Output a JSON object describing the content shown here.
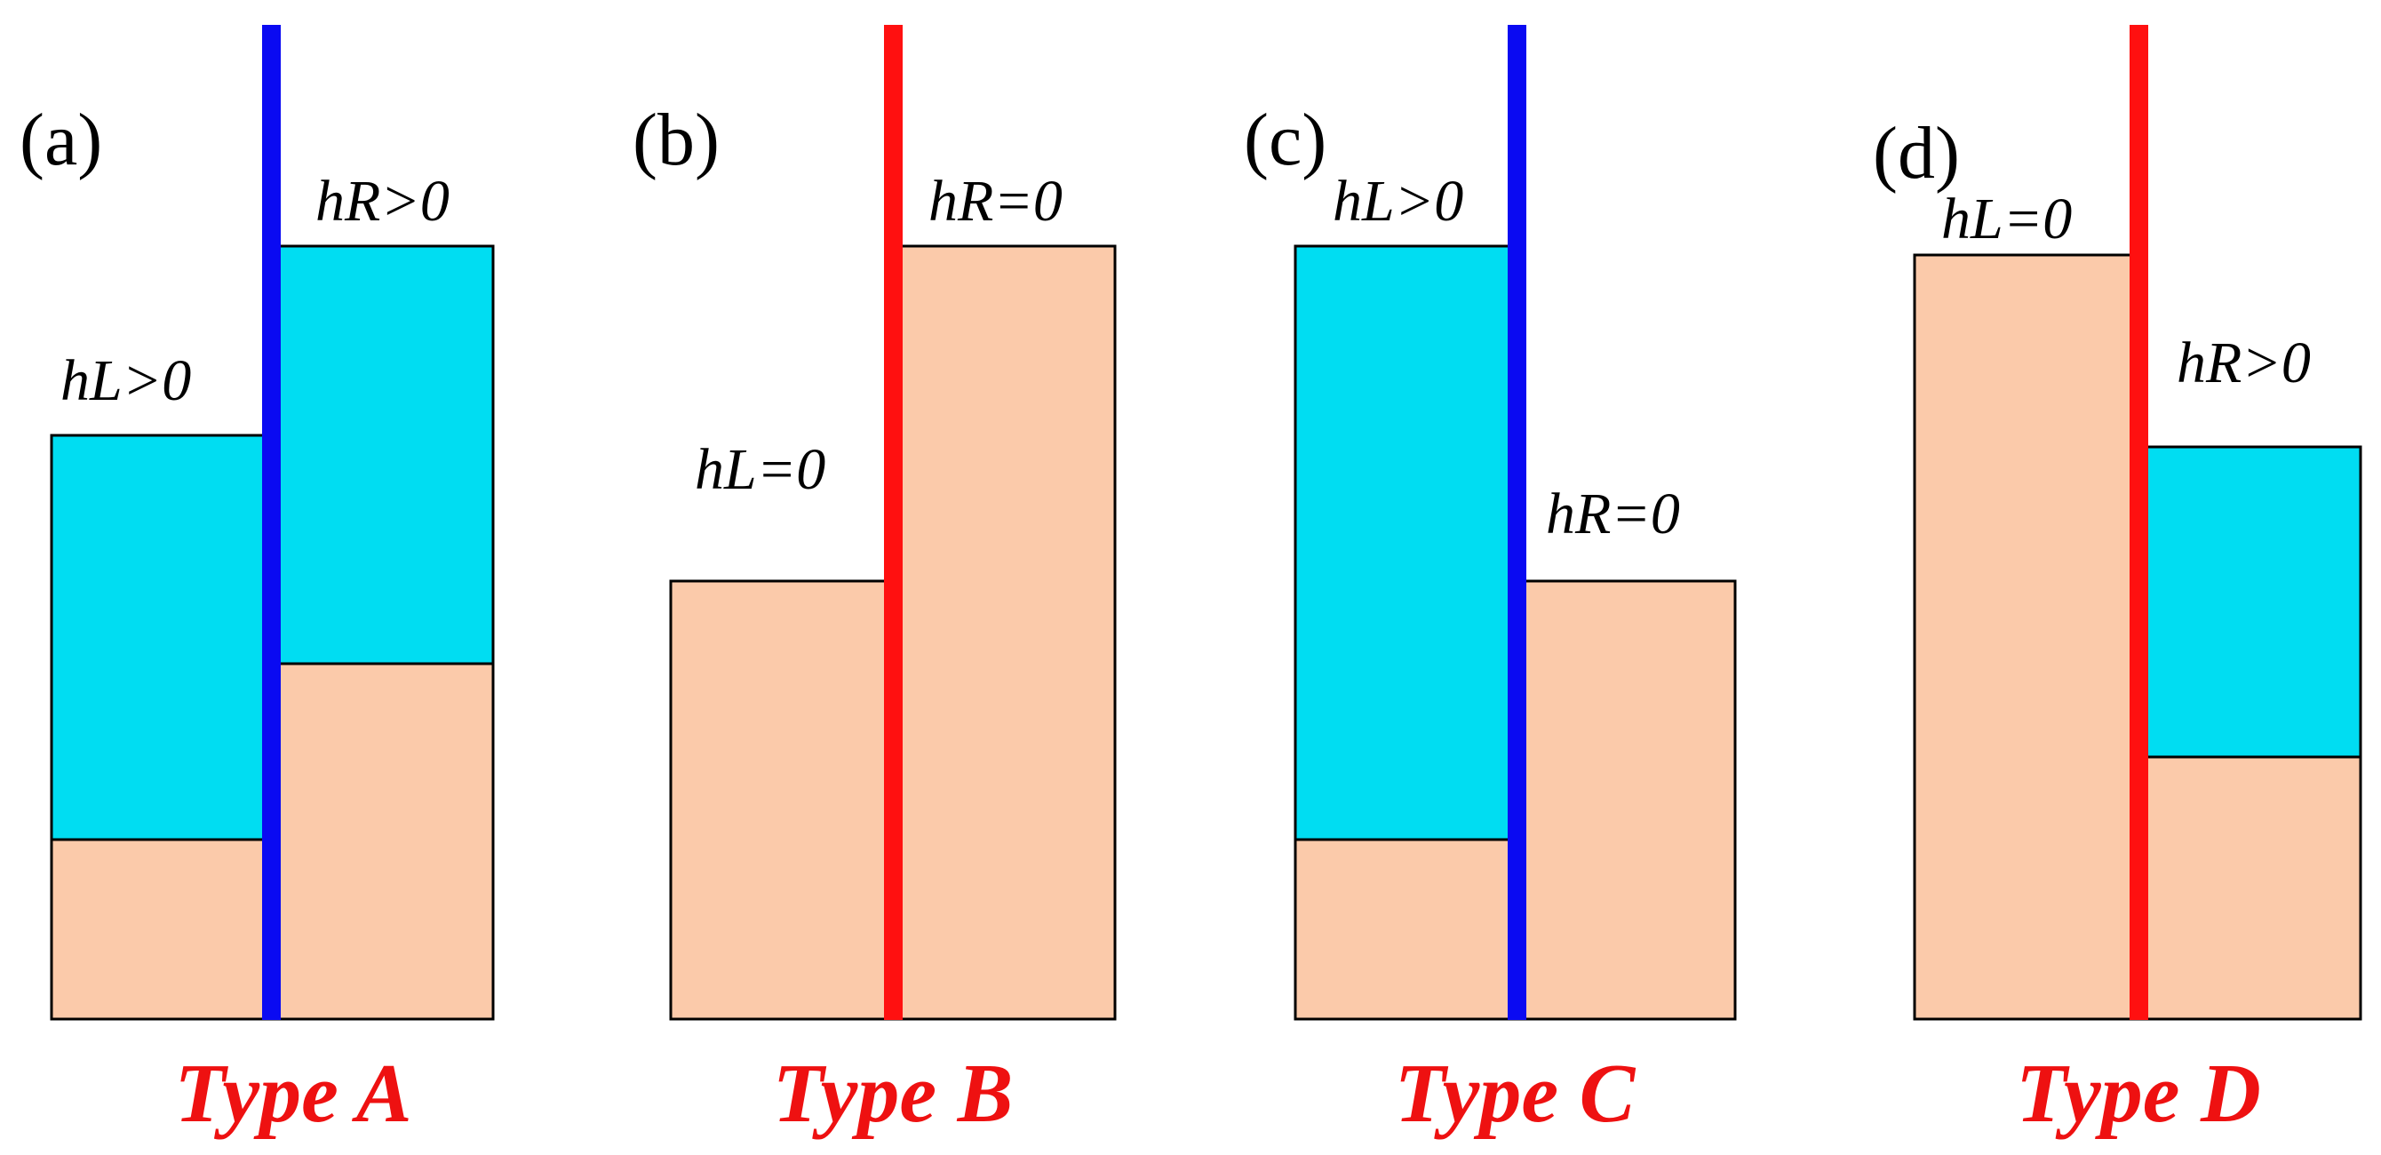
{
  "colors": {
    "water": "#00DDF2",
    "soil": "#FBCAAA",
    "wall_wet": "#0A0AF2",
    "wall_dry": "#FF1010",
    "type_label": "#EE1111"
  },
  "panels": [
    {
      "label": "(a)",
      "left_height": "hL>0",
      "right_height": "hR>0",
      "type": "Type A",
      "wall": "wall_wet"
    },
    {
      "label": "(b)",
      "left_height": "hL=0",
      "right_height": "hR=0",
      "type": "Type B",
      "wall": "wall_dry"
    },
    {
      "label": "(c)",
      "left_height": "hL>0",
      "right_height": "hR=0",
      "type": "Type C",
      "wall": "wall_wet"
    },
    {
      "label": "(d)",
      "left_height": "hL=0",
      "right_height": "hR>0",
      "type": "Type D",
      "wall": "wall_dry"
    }
  ]
}
